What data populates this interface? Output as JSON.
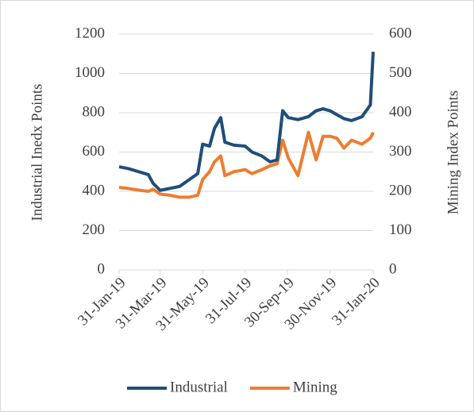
{
  "chart_data": {
    "type": "line",
    "y_label": "Industrial Inedx Points",
    "y2_label": "Mining Index Points",
    "x": [
      "2019-01-31",
      "2019-02-14",
      "2019-02-28",
      "2019-03-14",
      "2019-03-21",
      "2019-03-31",
      "2019-04-14",
      "2019-04-28",
      "2019-05-12",
      "2019-05-24",
      "2019-05-31",
      "2019-06-10",
      "2019-06-17",
      "2019-06-26",
      "2019-07-02",
      "2019-07-15",
      "2019-07-31",
      "2019-08-10",
      "2019-08-24",
      "2019-09-05",
      "2019-09-15",
      "2019-09-23",
      "2019-10-01",
      "2019-10-15",
      "2019-10-30",
      "2019-11-10",
      "2019-11-20",
      "2019-11-30",
      "2019-12-10",
      "2019-12-20",
      "2019-12-31",
      "2020-01-15",
      "2020-01-27",
      "2020-01-31"
    ],
    "series": [
      {
        "name": "Industrial",
        "color": "#1f4e79",
        "axis": "y",
        "values": [
          525,
          515,
          500,
          485,
          440,
          405,
          415,
          425,
          460,
          490,
          640,
          630,
          720,
          775,
          650,
          635,
          630,
          600,
          580,
          550,
          560,
          810,
          775,
          765,
          780,
          810,
          820,
          810,
          790,
          770,
          760,
          780,
          840,
          1110
        ]
      },
      {
        "name": "Mining",
        "color": "#ed7d31",
        "axis": "y2",
        "values": [
          210,
          207,
          203,
          200,
          205,
          193,
          190,
          185,
          185,
          190,
          230,
          250,
          275,
          290,
          240,
          250,
          255,
          245,
          255,
          265,
          270,
          330,
          285,
          240,
          350,
          280,
          340,
          340,
          335,
          310,
          330,
          320,
          335,
          350
        ]
      }
    ],
    "xlim": [
      "2019-01-31",
      "2020-01-31"
    ],
    "xticks": [
      {
        "value": "2019-01-31",
        "label": "31-Jan-19"
      },
      {
        "value": "2019-03-31",
        "label": "31-Mar-19"
      },
      {
        "value": "2019-05-31",
        "label": "31-May-19"
      },
      {
        "value": "2019-07-31",
        "label": "31-Jul-19"
      },
      {
        "value": "2019-09-30",
        "label": "30-Sep-19"
      },
      {
        "value": "2019-11-30",
        "label": "30-Nov-19"
      },
      {
        "value": "2020-01-31",
        "label": "31-Jan-20"
      }
    ],
    "ylim": [
      0,
      1200
    ],
    "yticks": [
      0,
      200,
      400,
      600,
      800,
      1000,
      1200
    ],
    "y2lim": [
      0,
      600
    ],
    "y2ticks": [
      0,
      100,
      200,
      300,
      400,
      500,
      600
    ],
    "grid": true,
    "legend": "bottom"
  }
}
